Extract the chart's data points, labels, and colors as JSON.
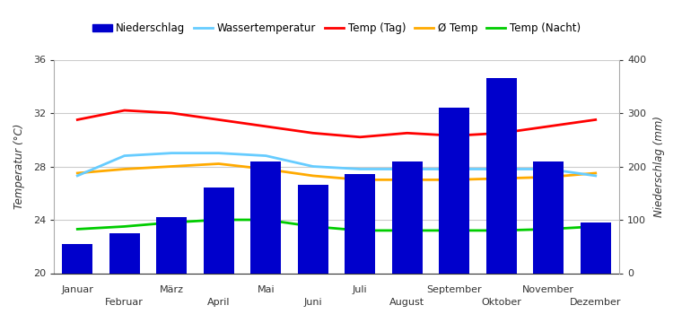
{
  "months": [
    "Januar",
    "Februar",
    "März",
    "April",
    "Mai",
    "Juni",
    "Juli",
    "August",
    "September",
    "Oktober",
    "November",
    "Dezember"
  ],
  "precipitation_mm": [
    55,
    75,
    105,
    160,
    210,
    165,
    185,
    210,
    310,
    365,
    210,
    95
  ],
  "temp_day": [
    31.5,
    32.2,
    32.0,
    31.5,
    31.0,
    30.5,
    30.2,
    30.5,
    30.3,
    30.5,
    31.0,
    31.5
  ],
  "temp_avg": [
    27.5,
    27.8,
    28.0,
    28.2,
    27.8,
    27.3,
    27.0,
    27.0,
    27.0,
    27.1,
    27.2,
    27.5
  ],
  "temp_night": [
    23.3,
    23.5,
    23.8,
    24.0,
    24.0,
    23.5,
    23.2,
    23.2,
    23.2,
    23.2,
    23.3,
    23.5
  ],
  "water_temp": [
    27.3,
    28.8,
    29.0,
    29.0,
    28.8,
    28.0,
    27.8,
    27.8,
    27.8,
    27.8,
    27.8,
    27.3
  ],
  "bar_color": "#0000cc",
  "line_day_color": "#ff0000",
  "line_avg_color": "#ffaa00",
  "line_night_color": "#00cc00",
  "line_water_color": "#66ccff",
  "temp_ylim": [
    20,
    36
  ],
  "precip_ylim": [
    0,
    400
  ],
  "temp_yticks": [
    20,
    24,
    28,
    32,
    36
  ],
  "precip_yticks": [
    0,
    100,
    200,
    300,
    400
  ],
  "ylabel_left": "Temperatur (°C)",
  "ylabel_right": "Niederschlag (mm)",
  "legend_labels": [
    "Niederschlag",
    "Wassertemperatur",
    "Temp (Tag)",
    "Ø Temp",
    "Temp (Nacht)"
  ],
  "background_color": "#ffffff",
  "grid_color": "#cccccc",
  "fig_width": 7.5,
  "fig_height": 3.5,
  "dpi": 100
}
